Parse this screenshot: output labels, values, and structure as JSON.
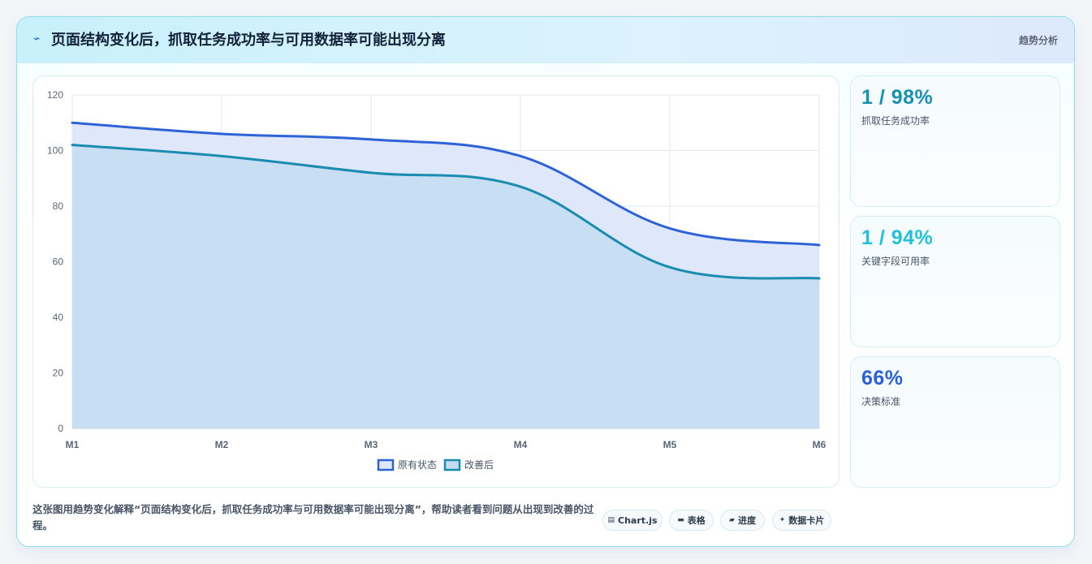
{
  "header": {
    "title": "页面结构变化后，抓取任务成功率与可用数据率可能出现分离",
    "tag": "趋势分析",
    "icon": "lightning-icon"
  },
  "chart_data": {
    "type": "area",
    "x": [
      "M1",
      "M2",
      "M3",
      "M4",
      "M5",
      "M6"
    ],
    "ylim": [
      0,
      120
    ],
    "yticks": [
      0,
      20,
      40,
      60,
      80,
      100,
      120
    ],
    "grid": true,
    "legend_position": "bottom",
    "series": [
      {
        "name": "原有状态",
        "values": [
          110,
          106,
          104,
          98,
          72,
          66
        ],
        "color": "#2d63d6",
        "fill": "#dfe8fb"
      },
      {
        "name": "改善后",
        "values": [
          102,
          98,
          92,
          87,
          58,
          54
        ],
        "color": "#1a8cb0",
        "fill": "#c5dcf1"
      }
    ]
  },
  "stats": [
    {
      "value": "1 / 98%",
      "label": "抓取任务成功率",
      "color": "#1692b0"
    },
    {
      "value": "1 / 94%",
      "label": "关键字段可用率",
      "color": "#22c2dc"
    },
    {
      "value": "66%",
      "label": "决策标准",
      "color": "#2a5fd6"
    }
  ],
  "footer": {
    "description": "这张图用趋势变化解释“页面结构变化后，抓取任务成功率与可用数据率可能出现分离”，帮助读者看到问题从出现到改善的过程。",
    "pills": [
      {
        "icon": "chart-icon",
        "glyph": "▤",
        "label": "Chart.js"
      },
      {
        "icon": "table-icon",
        "glyph": "▬",
        "label": "表格"
      },
      {
        "icon": "progress-icon",
        "glyph": "▰",
        "label": "进度"
      },
      {
        "icon": "sparkle-icon",
        "glyph": "✦",
        "label": "数据卡片"
      }
    ]
  }
}
